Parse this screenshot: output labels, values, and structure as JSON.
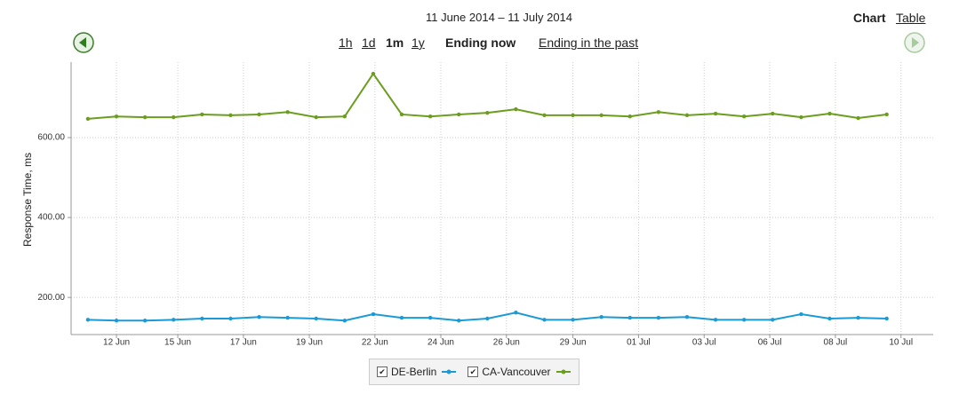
{
  "header": {
    "title": "11 June 2014 – 11 July 2014",
    "views": [
      "Chart",
      "Table"
    ]
  },
  "nav": {
    "ranges": [
      "1h",
      "1d",
      "1m",
      "1y"
    ],
    "modes": [
      "Ending now",
      "Ending in the past"
    ]
  },
  "chart_data": {
    "type": "line",
    "y_label": "Response Time, ms",
    "xlim": [
      -0.59,
      29.63
    ],
    "xticks": [
      {
        "value": 1.0,
        "label": "12 Jun"
      },
      {
        "value": 3.15,
        "label": "15 Jun"
      },
      {
        "value": 5.45,
        "label": "17 Jun"
      },
      {
        "value": 7.76,
        "label": "19 Jun"
      },
      {
        "value": 10.06,
        "label": "22 Jun"
      },
      {
        "value": 12.37,
        "label": "24 Jun"
      },
      {
        "value": 14.67,
        "label": "26 Jun"
      },
      {
        "value": 17.0,
        "label": "29 Jun"
      },
      {
        "value": 19.3,
        "label": "01 Jul"
      },
      {
        "value": 21.6,
        "label": "03 Jul"
      },
      {
        "value": 23.9,
        "label": "06 Jul"
      },
      {
        "value": 26.2,
        "label": "08 Jul"
      },
      {
        "value": 28.5,
        "label": "10 Jul"
      }
    ],
    "ylim": [
      107,
      789
    ],
    "yticks": [
      {
        "value": 200,
        "label": "200.00"
      },
      {
        "value": 400,
        "label": "400.00"
      },
      {
        "value": 600,
        "label": "600.00"
      }
    ],
    "grid": true,
    "series": [
      {
        "name": "DE-Berlin",
        "color": "#1a9ad6",
        "values": [
          144,
          142,
          142,
          144,
          147,
          147,
          151,
          149,
          147,
          142,
          158,
          149,
          149,
          142,
          147,
          162,
          144,
          144,
          151,
          149,
          149,
          151,
          144,
          144,
          144,
          158,
          147,
          149,
          147
        ]
      },
      {
        "name": "CA-Vancouver",
        "color": "#6b9e1f",
        "values": [
          647,
          653,
          651,
          651,
          658,
          656,
          658,
          664,
          651,
          653,
          760,
          658,
          653,
          658,
          662,
          671,
          656,
          656,
          656,
          653,
          664,
          656,
          660,
          653,
          660,
          651,
          660,
          649,
          658
        ]
      }
    ]
  }
}
